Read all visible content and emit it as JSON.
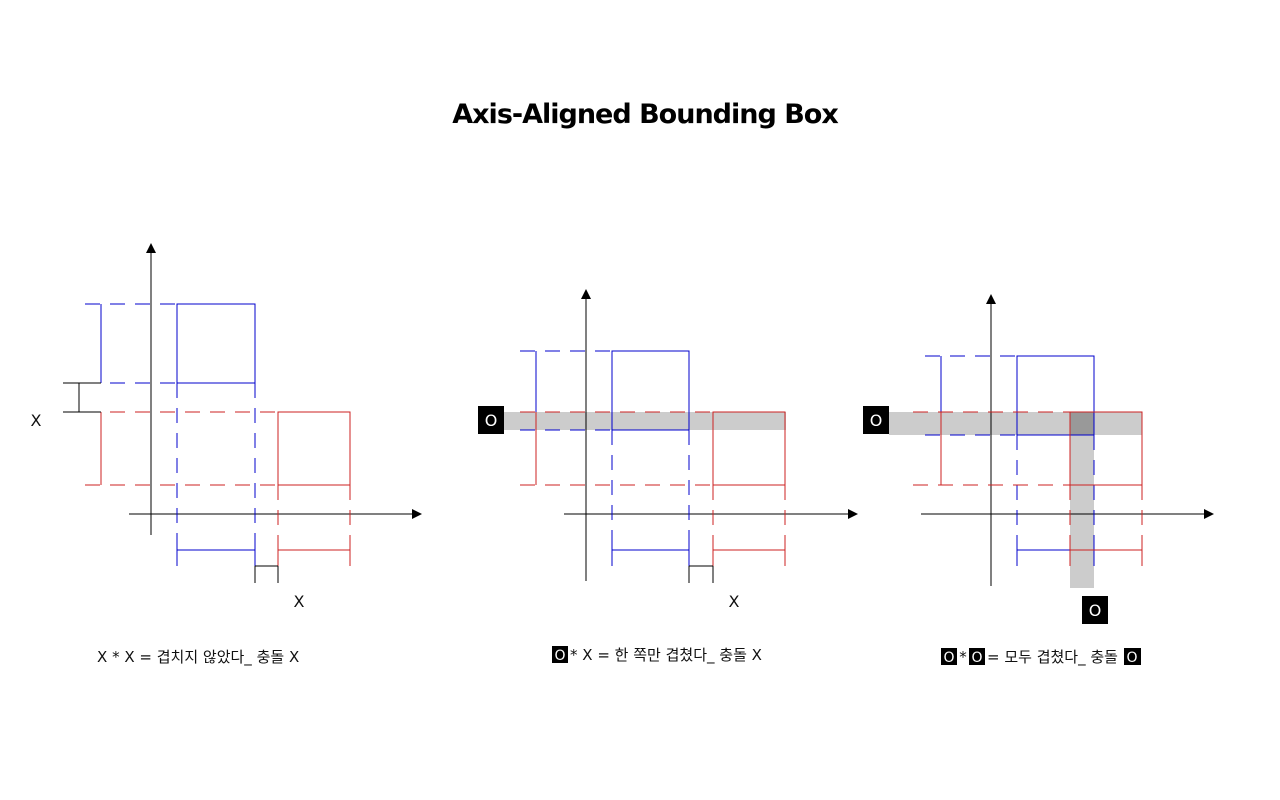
{
  "title": "Axis-Aligned Bounding Box",
  "colors": {
    "box_a": "#0000cc",
    "box_b": "#cc2222",
    "axis": "#000000",
    "overlap_band": "#cccccc",
    "overlap_intersection": "#999999",
    "badge_bg": "#000000",
    "badge_text": "#ffffff"
  },
  "panels": [
    {
      "x_overlap_marker": "X",
      "y_overlap_marker": "X",
      "caption": {
        "left_mark": "X",
        "op": "*",
        "right_mark": "X",
        "text": "= 겹치지 않았다_ 충돌 X"
      }
    },
    {
      "y_overlap_marker": "O",
      "x_overlap_marker": "X",
      "caption": {
        "left_mark": "O",
        "op": "*",
        "right_mark": "X",
        "text": "= 한 쪽만 겹쳤다_ 충돌 X"
      }
    },
    {
      "y_overlap_marker": "O",
      "x_overlap_marker": "O",
      "caption": {
        "left_mark": "O",
        "op": "*",
        "right_mark": "O",
        "text": "= 모두 겹쳤다_ 충돌",
        "result_mark": "O"
      }
    }
  ]
}
